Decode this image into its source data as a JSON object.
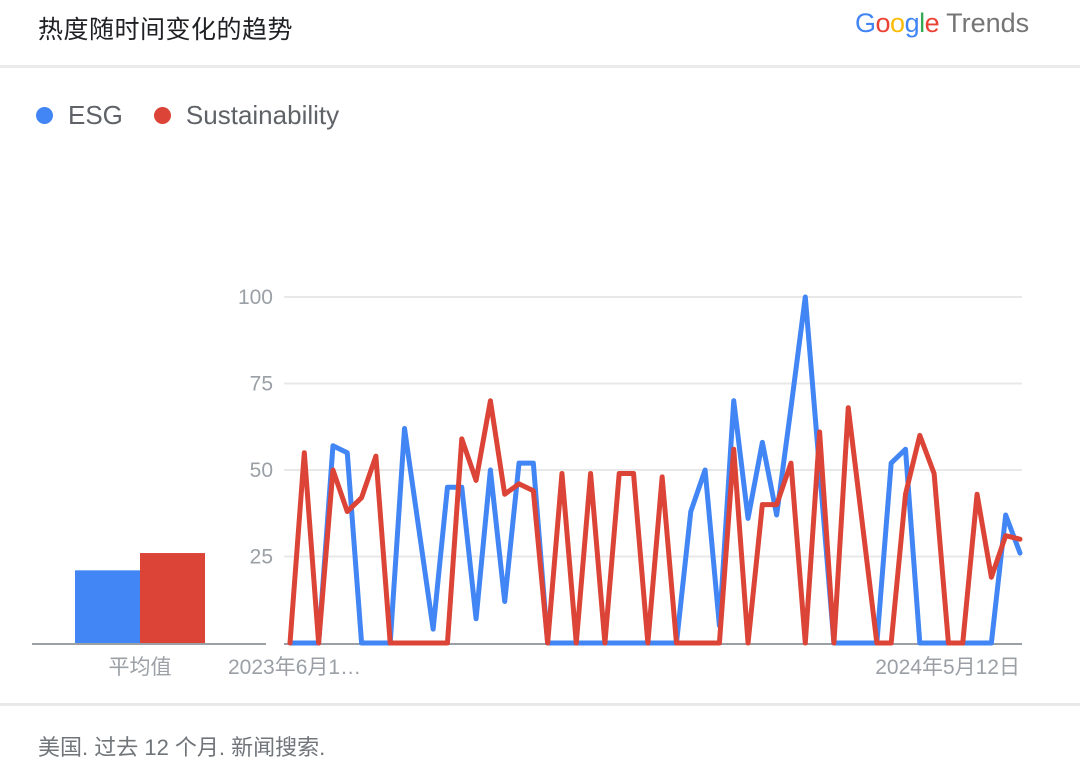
{
  "header": {
    "title": "热度随时间变化的趋势"
  },
  "brand": {
    "letters": [
      "G",
      "o",
      "o",
      "g",
      "l",
      "e"
    ],
    "trends": "Trends"
  },
  "legend": [
    {
      "label": "ESG",
      "color": "#4285f4"
    },
    {
      "label": "Sustainability",
      "color": "#db4437"
    }
  ],
  "footer": {
    "text": "美国. 过去 12 个月. 新闻搜索."
  },
  "chart_data": {
    "type": "line",
    "title": "热度随时间变化的趋势",
    "xlabel": "",
    "ylabel": "",
    "ylim": [
      0,
      100
    ],
    "grid": true,
    "y_ticks": [
      100,
      75,
      50,
      25
    ],
    "x_axis_labels": {
      "left": "2023年6月1…",
      "right": "2024年5月12日"
    },
    "averages": {
      "label": "平均值",
      "series": [
        {
          "name": "ESG",
          "value": 21,
          "color": "#4285f4"
        },
        {
          "name": "Sustainability",
          "value": 26,
          "color": "#db4437"
        }
      ]
    },
    "series": [
      {
        "name": "ESG",
        "color": "#4285f4",
        "values": [
          0,
          0,
          0,
          57,
          55,
          0,
          0,
          0,
          62,
          33,
          4,
          45,
          45,
          7,
          50,
          12,
          52,
          52,
          0,
          0,
          0,
          0,
          0,
          0,
          0,
          0,
          0,
          0,
          38,
          50,
          5,
          70,
          36,
          58,
          37,
          68,
          100,
          50,
          0,
          0,
          0,
          0,
          52,
          56,
          0,
          0,
          0,
          0,
          0,
          0,
          37,
          26
        ]
      },
      {
        "name": "Sustainability",
        "color": "#db4437",
        "values": [
          0,
          55,
          0,
          50,
          38,
          42,
          54,
          0,
          0,
          0,
          0,
          0,
          59,
          47,
          70,
          43,
          46,
          44,
          0,
          49,
          0,
          49,
          0,
          49,
          49,
          0,
          48,
          0,
          0,
          0,
          0,
          56,
          0,
          40,
          40,
          52,
          0,
          61,
          0,
          68,
          34,
          0,
          0,
          43,
          60,
          49,
          0,
          0,
          43,
          19,
          31,
          30
        ]
      }
    ]
  }
}
